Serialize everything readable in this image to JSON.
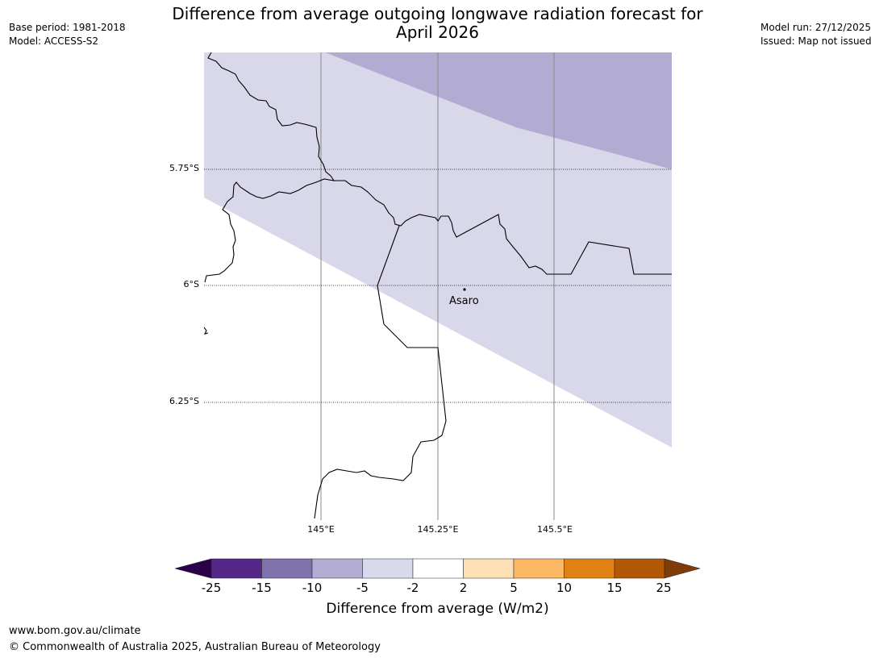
{
  "title_line1": "Difference from average outgoing longwave radiation forecast for",
  "title_line2": "April 2026",
  "header_left": {
    "base_period": "Base period: 1981-2018",
    "model": "Model: ACCESS-S2"
  },
  "header_right": {
    "model_run": "Model run: 27/12/2025",
    "issued": "Issued: Map not issued"
  },
  "map": {
    "lat_labels": [
      "5.75°S",
      "6°S",
      "6.25°S"
    ],
    "lon_labels": [
      "145°E",
      "145.25°E",
      "145.5°E"
    ],
    "place_name": "Asaro",
    "fill_colors": {
      "minus10_to_minus5": "#b2abd2",
      "minus5_to_minus2": "#d8d8ea",
      "neutral": "#ffffff"
    }
  },
  "colorbar": {
    "ticks": [
      "-25",
      "-15",
      "-10",
      "-5",
      "-2",
      "2",
      "5",
      "10",
      "15",
      "25"
    ],
    "colors": [
      "#2d004b",
      "#542788",
      "#8073ac",
      "#b2abd2",
      "#d8daeb",
      "#ffffff",
      "#fee0b6",
      "#fdb863",
      "#e08214",
      "#b35806",
      "#7f3b08"
    ],
    "label": "Difference from average (W/m2)"
  },
  "footer": {
    "url": "www.bom.gov.au/climate",
    "copyright": "© Commonwealth of Australia 2025, Australian Bureau of Meteorology"
  }
}
